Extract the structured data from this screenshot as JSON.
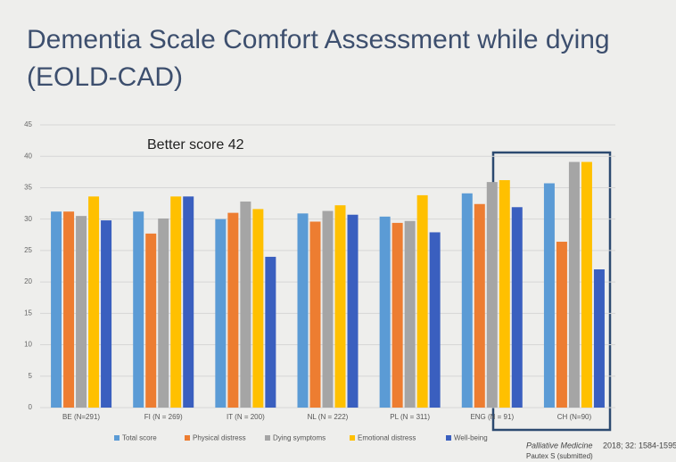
{
  "chart_data": {
    "type": "bar",
    "title": [
      "Dementia Scale Comfort Assessment while dying",
      "(EOLD-CAD)"
    ],
    "annotation": "Better score 42",
    "categories": [
      "BE (N=291)",
      "FI (N = 269)",
      "IT (N = 200)",
      "NL (N = 222)",
      "PL (N = 311)",
      "ENG (N = 91)",
      "CH (N=90)"
    ],
    "series": [
      {
        "name": "Total score",
        "color": "#5b9bd5",
        "values": [
          31.2,
          31.2,
          30,
          30.9,
          30.4,
          34.1,
          35.7
        ]
      },
      {
        "name": "Physical distress",
        "color": "#ed7d31",
        "values": [
          31.2,
          27.7,
          31,
          29.6,
          29.4,
          32.4,
          26.4
        ]
      },
      {
        "name": "Dying symptoms",
        "color": "#a5a5a5",
        "values": [
          30.5,
          30.1,
          32.8,
          31.3,
          29.7,
          35.9,
          39.1
        ]
      },
      {
        "name": "Emotional distress",
        "color": "#ffc000",
        "values": [
          33.6,
          33.6,
          31.6,
          32.2,
          33.8,
          36.2,
          39.1
        ]
      },
      {
        "name": "Well-being",
        "color": "#3a5fbf",
        "values": [
          29.8,
          33.6,
          24,
          30.7,
          27.9,
          31.9,
          22
        ]
      }
    ],
    "ylim": [
      0,
      45
    ],
    "yticks": [
      0,
      5,
      10,
      15,
      20,
      25,
      30,
      35,
      40,
      45
    ],
    "grid": true,
    "source": {
      "journal": "Palliative Medicine",
      "citation": " 2018; 32: 1584-1595",
      "author": "Pautex S (submitted)"
    }
  }
}
